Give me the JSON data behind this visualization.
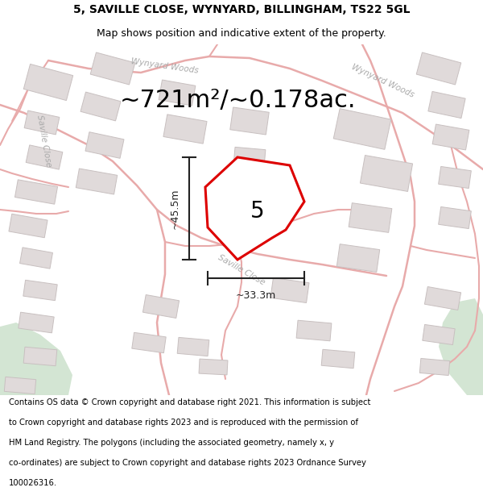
{
  "title_line1": "5, SAVILLE CLOSE, WYNYARD, BILLINGHAM, TS22 5GL",
  "title_line2": "Map shows position and indicative extent of the property.",
  "area_text": "~721m²/~0.178ac.",
  "dim_vertical": "~45.5m",
  "dim_horizontal": "~33.3m",
  "plot_number": "5",
  "footer_lines": [
    "Contains OS data © Crown copyright and database right 2021. This information is subject",
    "to Crown copyright and database rights 2023 and is reproduced with the permission of",
    "HM Land Registry. The polygons (including the associated geometry, namely x, y",
    "co-ordinates) are subject to Crown copyright and database rights 2023 Ordnance Survey",
    "100026316."
  ],
  "map_bg": "#ffffff",
  "road_color": "#e8aaaa",
  "building_fill": "#e0dada",
  "building_edge": "#c8c0c0",
  "green_color": "#c8dfc8",
  "plot_color": "#dd0000",
  "plot_fill": "#ffffff",
  "dim_color": "#222222",
  "street_label_color": "#aaaaaa",
  "title_color": "#000000",
  "footer_color": "#000000",
  "title_fontsize": 10,
  "subtitle_fontsize": 9,
  "area_fontsize": 22,
  "dim_fontsize": 9,
  "street_fontsize": 7.5,
  "footer_fontsize": 7.2
}
